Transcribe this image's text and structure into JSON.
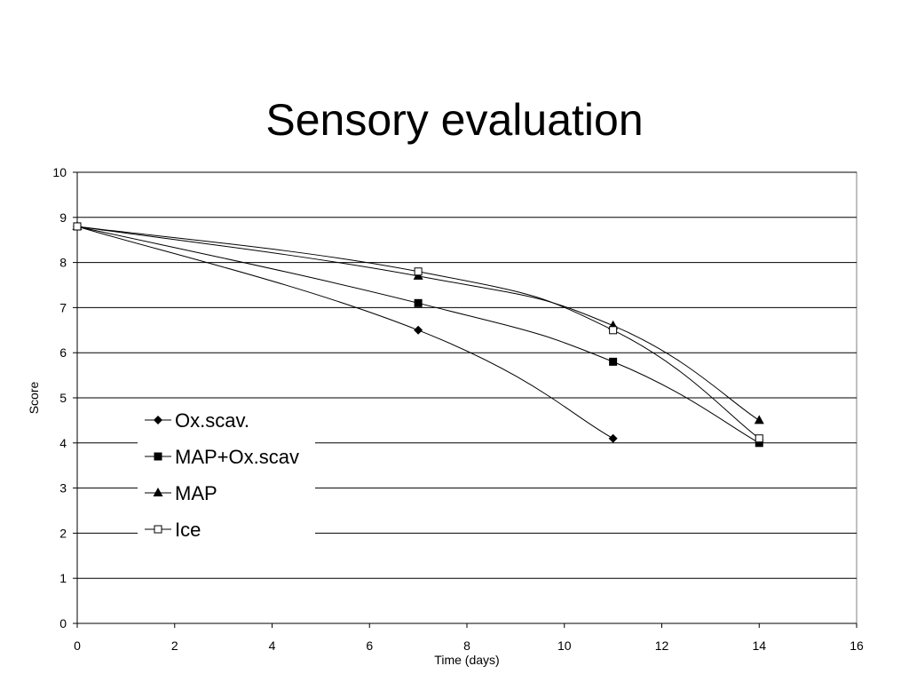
{
  "slide": {
    "title": "Sensory evaluation"
  },
  "chart_data": {
    "type": "line",
    "title": "",
    "xlabel": "Time (days)",
    "ylabel": "Score",
    "xlim": [
      0,
      16
    ],
    "ylim": [
      0,
      10
    ],
    "x_ticks": [
      0,
      2,
      4,
      6,
      8,
      10,
      12,
      14,
      16
    ],
    "y_ticks": [
      0,
      1,
      2,
      3,
      4,
      5,
      6,
      7,
      8,
      9,
      10
    ],
    "grid": "horizontal",
    "legend_position": "left",
    "smoothed": true,
    "series": [
      {
        "name": "Ox.scav.",
        "marker": "diamond",
        "x": [
          0,
          7,
          11
        ],
        "y": [
          8.8,
          6.5,
          4.1
        ]
      },
      {
        "name": "MAP+Ox.scav",
        "marker": "square",
        "x": [
          0,
          7,
          11,
          14
        ],
        "y": [
          8.8,
          7.1,
          5.8,
          4.0
        ]
      },
      {
        "name": "MAP",
        "marker": "triangle",
        "x": [
          0,
          7,
          11,
          14
        ],
        "y": [
          8.8,
          7.7,
          6.6,
          4.5
        ]
      },
      {
        "name": "Ice",
        "marker": "open-square",
        "x": [
          0,
          7,
          11,
          14
        ],
        "y": [
          8.8,
          7.8,
          6.5,
          4.1
        ]
      }
    ]
  }
}
